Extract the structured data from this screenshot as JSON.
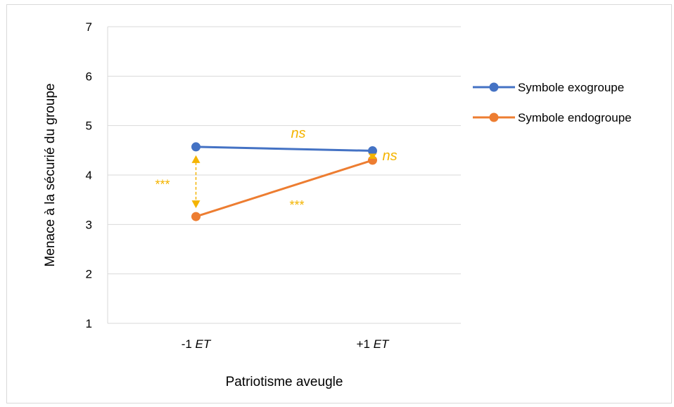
{
  "chart_data": {
    "type": "line",
    "xlabel": "Patriotisme aveugle",
    "ylabel": "Menace à la sécurié du groupe",
    "ylim": [
      1,
      7
    ],
    "yticks": [
      1,
      2,
      3,
      4,
      5,
      6,
      7
    ],
    "categories": [
      {
        "prefix": "-1 ",
        "italic": "ET"
      },
      {
        "prefix": "+1 ",
        "italic": "ET"
      }
    ],
    "series": [
      {
        "name": "Symbole exogroupe",
        "color": "#4472c4",
        "values": [
          4.57,
          4.49
        ]
      },
      {
        "name": "Symbole endogroupe",
        "color": "#ed7d31",
        "values": [
          3.16,
          4.3
        ]
      }
    ],
    "legend": "right",
    "grid": true,
    "annotations": {
      "color": "#f4b400",
      "exo_slope": "ns",
      "endo_slope": "***",
      "diff_at_minus": "***",
      "diff_at_plus": "ns"
    }
  }
}
